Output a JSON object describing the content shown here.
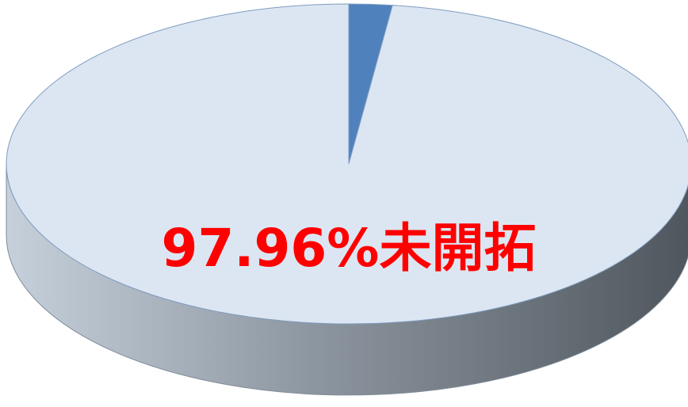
{
  "chart_data": {
    "type": "pie",
    "categories": [
      null,
      "未開拓"
    ],
    "values": [
      2.04,
      97.96
    ],
    "value_labels": [
      null,
      "97.96%"
    ],
    "colors": [
      "#4f81bd",
      "#dce6f2"
    ],
    "label_color": "#ff0000"
  }
}
